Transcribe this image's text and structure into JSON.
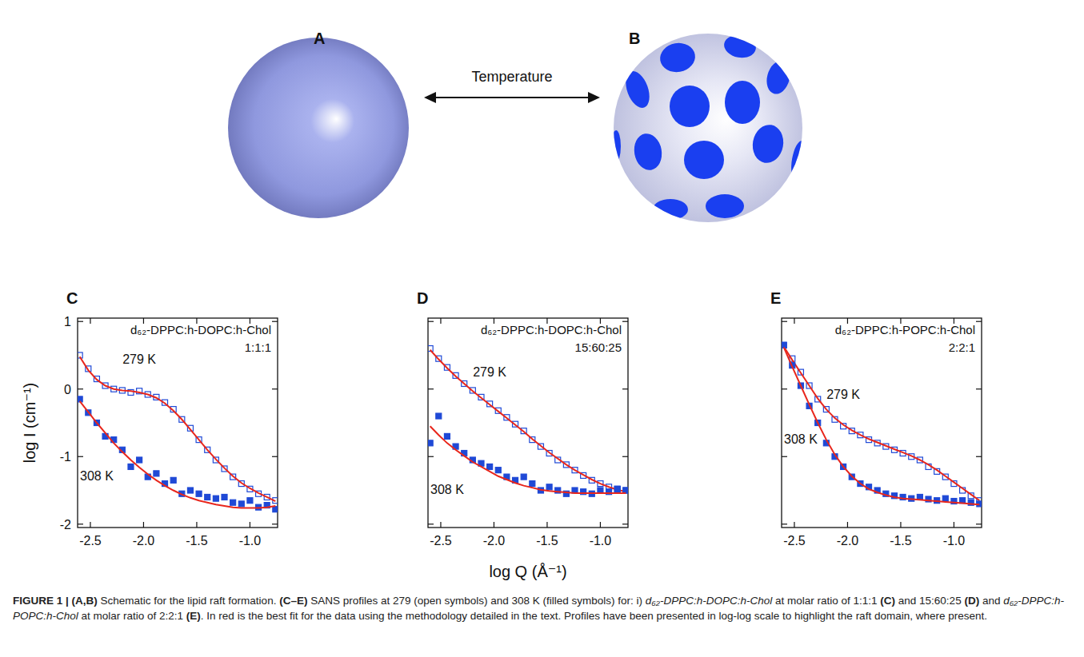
{
  "schematic": {
    "labels": [
      "A",
      "B"
    ],
    "arrow_label": "Temperature"
  },
  "chart_data": [
    {
      "type": "scatter",
      "label": "C",
      "title": "d₆₂-DPPC:h-DOPC:h-Chol",
      "subtitle": "1:1:1",
      "y_label": "log I (cm⁻¹)",
      "xlim": [
        -2.62,
        -0.74
      ],
      "ylim": [
        -2.05,
        1.05
      ],
      "xticks": [
        -2.5,
        {
          "value": -2,
          "label": "-2.0"
        },
        -1.5,
        {
          "value": -1,
          "label": "-1.0"
        }
      ],
      "yticks": [
        1,
        0,
        -1,
        -2
      ],
      "tick_labels": true,
      "series": [
        {
          "name": "279 K",
          "type": "scatter",
          "marker": "open-square",
          "color": "#1f49d6",
          "x": [
            -2.6,
            -2.52,
            -2.44,
            -2.36,
            -2.28,
            -2.2,
            -2.12,
            -2.04,
            -1.96,
            -1.88,
            -1.8,
            -1.72,
            -1.64,
            -1.56,
            -1.48,
            -1.4,
            -1.32,
            -1.24,
            -1.16,
            -1.08,
            -1.0,
            -0.92,
            -0.84,
            -0.76
          ],
          "values": [
            0.5,
            0.3,
            0.15,
            0.05,
            0.0,
            -0.02,
            -0.05,
            -0.03,
            -0.08,
            -0.12,
            -0.2,
            -0.3,
            -0.45,
            -0.58,
            -0.75,
            -0.9,
            -1.05,
            -1.18,
            -1.3,
            -1.4,
            -1.48,
            -1.55,
            -1.6,
            -1.65
          ]
        },
        {
          "type": "line",
          "line_style": "solid",
          "color": "#e8261c",
          "x": [
            -2.6,
            -2.52,
            -2.44,
            -2.36,
            -2.28,
            -2.2,
            -2.12,
            -2.04,
            -1.96,
            -1.88,
            -1.8,
            -1.72,
            -1.64,
            -1.56,
            -1.48,
            -1.4,
            -1.32,
            -1.24,
            -1.16,
            -1.08,
            -1.0,
            -0.92,
            -0.84,
            -0.76
          ],
          "values": [
            0.48,
            0.28,
            0.14,
            0.05,
            0.0,
            -0.02,
            -0.03,
            -0.05,
            -0.08,
            -0.13,
            -0.21,
            -0.32,
            -0.45,
            -0.6,
            -0.75,
            -0.9,
            -1.04,
            -1.17,
            -1.29,
            -1.39,
            -1.47,
            -1.54,
            -1.6,
            -1.66
          ]
        },
        {
          "name": "308 K",
          "type": "scatter",
          "marker": "square",
          "color": "#1f49d6",
          "x": [
            -2.6,
            -2.52,
            -2.44,
            -2.36,
            -2.28,
            -2.2,
            -2.12,
            -2.04,
            -1.96,
            -1.88,
            -1.8,
            -1.72,
            -1.64,
            -1.56,
            -1.48,
            -1.4,
            -1.32,
            -1.24,
            -1.16,
            -1.08,
            -1.0,
            -0.92,
            -0.84,
            -0.76
          ],
          "values": [
            -0.15,
            -0.35,
            -0.5,
            -0.7,
            -0.75,
            -0.9,
            -1.15,
            -1.05,
            -1.3,
            -1.25,
            -1.4,
            -1.35,
            -1.55,
            -1.5,
            -1.55,
            -1.6,
            -1.62,
            -1.6,
            -1.68,
            -1.7,
            -1.65,
            -1.75,
            -1.72,
            -1.78
          ]
        },
        {
          "type": "line",
          "line_style": "solid",
          "color": "#e8261c",
          "x": [
            -2.6,
            -2.52,
            -2.44,
            -2.36,
            -2.28,
            -2.2,
            -2.12,
            -2.04,
            -1.96,
            -1.88,
            -1.8,
            -1.72,
            -1.64,
            -1.56,
            -1.48,
            -1.4,
            -1.32,
            -1.24,
            -1.16,
            -1.08,
            -1.0,
            -0.92,
            -0.84,
            -0.76
          ],
          "values": [
            -0.18,
            -0.34,
            -0.5,
            -0.65,
            -0.8,
            -0.93,
            -1.05,
            -1.16,
            -1.26,
            -1.35,
            -1.43,
            -1.5,
            -1.56,
            -1.61,
            -1.65,
            -1.68,
            -1.71,
            -1.73,
            -1.75,
            -1.76,
            -1.76,
            -1.76,
            -1.75,
            -1.73
          ]
        }
      ]
    },
    {
      "type": "scatter",
      "label": "D",
      "title": "d₆₂-DPPC:h-DOPC:h-Chol",
      "subtitle": "15:60:25",
      "x_label": "log Q (Å⁻¹)",
      "xlim": [
        -2.62,
        -0.74
      ],
      "ylim": [
        -2.05,
        1.05
      ],
      "xticks": [
        -2.5,
        {
          "value": -2,
          "label": "-2.0"
        },
        -1.5,
        {
          "value": -1,
          "label": "-1.0"
        }
      ],
      "yticks": [
        1,
        0,
        -1,
        -2
      ],
      "tick_labels": "x",
      "series": [
        {
          "name": "279 K",
          "type": "scatter",
          "marker": "open-square",
          "color": "#1f49d6",
          "x": [
            -2.6,
            -2.52,
            -2.44,
            -2.36,
            -2.28,
            -2.2,
            -2.12,
            -2.04,
            -1.96,
            -1.88,
            -1.8,
            -1.72,
            -1.64,
            -1.56,
            -1.48,
            -1.4,
            -1.32,
            -1.24,
            -1.16,
            -1.08,
            -1.0,
            -0.92,
            -0.84,
            -0.76
          ],
          "values": [
            0.6,
            0.45,
            0.32,
            0.2,
            0.08,
            -0.02,
            -0.12,
            -0.22,
            -0.32,
            -0.42,
            -0.52,
            -0.62,
            -0.75,
            -0.85,
            -0.95,
            -1.05,
            -1.12,
            -1.2,
            -1.28,
            -1.35,
            -1.4,
            -1.45,
            -1.48,
            -1.5
          ]
        },
        {
          "type": "line",
          "line_style": "solid",
          "color": "#e8261c",
          "x": [
            -2.6,
            -2.52,
            -2.44,
            -2.36,
            -2.28,
            -2.2,
            -2.12,
            -2.04,
            -1.96,
            -1.88,
            -1.8,
            -1.72,
            -1.64,
            -1.56,
            -1.48,
            -1.4,
            -1.32,
            -1.24,
            -1.16,
            -1.08,
            -1.0,
            -0.92,
            -0.84,
            -0.76
          ],
          "values": [
            0.58,
            0.44,
            0.31,
            0.19,
            0.08,
            -0.03,
            -0.13,
            -0.23,
            -0.33,
            -0.43,
            -0.53,
            -0.63,
            -0.74,
            -0.84,
            -0.94,
            -1.03,
            -1.12,
            -1.2,
            -1.27,
            -1.34,
            -1.4,
            -1.45,
            -1.49,
            -1.52
          ]
        },
        {
          "name": "308 K",
          "type": "scatter",
          "marker": "square",
          "color": "#1f49d6",
          "x": [
            -2.6,
            -2.52,
            -2.44,
            -2.36,
            -2.28,
            -2.2,
            -2.12,
            -2.04,
            -1.96,
            -1.88,
            -1.8,
            -1.72,
            -1.64,
            -1.56,
            -1.48,
            -1.4,
            -1.32,
            -1.24,
            -1.16,
            -1.08,
            -1.0,
            -0.92,
            -0.84,
            -0.76
          ],
          "values": [
            -0.8,
            -0.4,
            -0.7,
            -0.85,
            -0.95,
            -1.05,
            -1.1,
            -1.15,
            -1.2,
            -1.3,
            -1.35,
            -1.3,
            -1.4,
            -1.5,
            -1.45,
            -1.5,
            -1.55,
            -1.5,
            -1.52,
            -1.55,
            -1.5,
            -1.52,
            -1.48,
            -1.5
          ]
        },
        {
          "type": "line",
          "line_style": "solid",
          "color": "#e8261c",
          "x": [
            -2.6,
            -2.52,
            -2.44,
            -2.36,
            -2.28,
            -2.2,
            -2.12,
            -2.04,
            -1.96,
            -1.88,
            -1.8,
            -1.72,
            -1.64,
            -1.56,
            -1.48,
            -1.4,
            -1.32,
            -1.24,
            -1.16,
            -1.08,
            -1.0,
            -0.92,
            -0.84,
            -0.76
          ],
          "values": [
            -0.55,
            -0.68,
            -0.8,
            -0.9,
            -0.99,
            -1.08,
            -1.15,
            -1.22,
            -1.29,
            -1.34,
            -1.39,
            -1.43,
            -1.46,
            -1.49,
            -1.51,
            -1.52,
            -1.53,
            -1.54,
            -1.54,
            -1.54,
            -1.54,
            -1.54,
            -1.54,
            -1.54
          ]
        }
      ]
    },
    {
      "type": "scatter",
      "label": "E",
      "title": "d₆₂-DPPC:h-POPC:h-Chol",
      "subtitle": "2:2:1",
      "xlim": [
        -2.62,
        -0.74
      ],
      "ylim": [
        -2.05,
        1.05
      ],
      "xticks": [
        -2.5,
        {
          "value": -2,
          "label": "-2.0"
        },
        -1.5,
        {
          "value": -1,
          "label": "-1.0"
        }
      ],
      "yticks": [
        1,
        0,
        -1,
        -2
      ],
      "tick_labels": "x",
      "series": [
        {
          "name": "279 K",
          "type": "scatter",
          "marker": "open-square",
          "color": "#1f49d6",
          "x": [
            -2.6,
            -2.52,
            -2.44,
            -2.36,
            -2.28,
            -2.2,
            -2.12,
            -2.04,
            -1.96,
            -1.88,
            -1.8,
            -1.72,
            -1.64,
            -1.56,
            -1.48,
            -1.4,
            -1.32,
            -1.24,
            -1.16,
            -1.08,
            -1.0,
            -0.92,
            -0.84,
            -0.76
          ],
          "values": [
            0.65,
            0.45,
            0.25,
            0.05,
            -0.15,
            -0.3,
            -0.45,
            -0.55,
            -0.62,
            -0.68,
            -0.75,
            -0.8,
            -0.85,
            -0.9,
            -0.95,
            -1.0,
            -1.05,
            -1.15,
            -1.22,
            -1.3,
            -1.4,
            -1.5,
            -1.58,
            -1.65
          ]
        },
        {
          "type": "line",
          "line_style": "solid",
          "color": "#e8261c",
          "x": [
            -2.6,
            -2.52,
            -2.44,
            -2.36,
            -2.28,
            -2.2,
            -2.12,
            -2.04,
            -1.96,
            -1.88,
            -1.8,
            -1.72,
            -1.64,
            -1.56,
            -1.48,
            -1.4,
            -1.32,
            -1.24,
            -1.16,
            -1.08,
            -1.0,
            -0.92,
            -0.84,
            -0.76
          ],
          "values": [
            0.63,
            0.43,
            0.24,
            0.05,
            -0.14,
            -0.3,
            -0.43,
            -0.53,
            -0.61,
            -0.68,
            -0.74,
            -0.79,
            -0.84,
            -0.89,
            -0.94,
            -0.99,
            -1.05,
            -1.12,
            -1.2,
            -1.29,
            -1.38,
            -1.47,
            -1.56,
            -1.65
          ]
        },
        {
          "name": "308 K",
          "type": "scatter",
          "marker": "square",
          "color": "#1f49d6",
          "x": [
            -2.6,
            -2.52,
            -2.44,
            -2.36,
            -2.28,
            -2.2,
            -2.12,
            -2.04,
            -1.96,
            -1.88,
            -1.8,
            -1.72,
            -1.64,
            -1.56,
            -1.48,
            -1.4,
            -1.32,
            -1.24,
            -1.16,
            -1.08,
            -1.0,
            -0.92,
            -0.84,
            -0.76
          ],
          "values": [
            0.65,
            0.35,
            0.05,
            -0.25,
            -0.5,
            -0.8,
            -1.0,
            -1.15,
            -1.3,
            -1.4,
            -1.45,
            -1.5,
            -1.55,
            -1.58,
            -1.6,
            -1.62,
            -1.6,
            -1.63,
            -1.65,
            -1.62,
            -1.66,
            -1.65,
            -1.68,
            -1.7
          ]
        },
        {
          "type": "line",
          "line_style": "solid",
          "color": "#e8261c",
          "x": [
            -2.6,
            -2.52,
            -2.44,
            -2.36,
            -2.28,
            -2.2,
            -2.12,
            -2.04,
            -1.96,
            -1.88,
            -1.8,
            -1.72,
            -1.64,
            -1.56,
            -1.48,
            -1.4,
            -1.32,
            -1.24,
            -1.16,
            -1.08,
            -1.0,
            -0.92,
            -0.84,
            -0.76
          ],
          "values": [
            0.62,
            0.33,
            0.05,
            -0.23,
            -0.5,
            -0.75,
            -0.97,
            -1.15,
            -1.29,
            -1.4,
            -1.48,
            -1.53,
            -1.57,
            -1.6,
            -1.62,
            -1.63,
            -1.64,
            -1.65,
            -1.66,
            -1.67,
            -1.68,
            -1.69,
            -1.7,
            -1.71
          ]
        }
      ]
    }
  ],
  "caption": {
    "parts": [
      {
        "text": "FIGURE 1 | ",
        "style": "bold"
      },
      {
        "text": "(A,B)",
        "style": "bold"
      },
      {
        "text": " Schematic for the lipid raft formation. ",
        "style": "normal"
      },
      {
        "text": "(C–E)",
        "style": "bold"
      },
      {
        "text": " SANS profiles at 279 (open symbols) and 308 K (filled symbols) for: i) ",
        "style": "normal"
      },
      {
        "text": "d₆₂-DPPC:h-DOPC:h-Chol",
        "style": "italic"
      },
      {
        "text": " at molar ratio of 1:1:1 ",
        "style": "normal"
      },
      {
        "text": "(C)",
        "style": "bold"
      },
      {
        "text": " and 15:60:25 ",
        "style": "normal"
      },
      {
        "text": "(D)",
        "style": "bold"
      },
      {
        "text": " and ",
        "style": "normal"
      },
      {
        "text": "d₆₂-DPPC:h-POPC:h-Chol",
        "style": "italic"
      },
      {
        "text": " at molar ratio of 2:2:1 ",
        "style": "normal"
      },
      {
        "text": "(E)",
        "style": "bold"
      },
      {
        "text": ". In red is the best fit for the data using the methodology detailed in the text. Profiles have been presented in log-log scale to highlight the raft domain, where present.",
        "style": "normal"
      }
    ]
  }
}
